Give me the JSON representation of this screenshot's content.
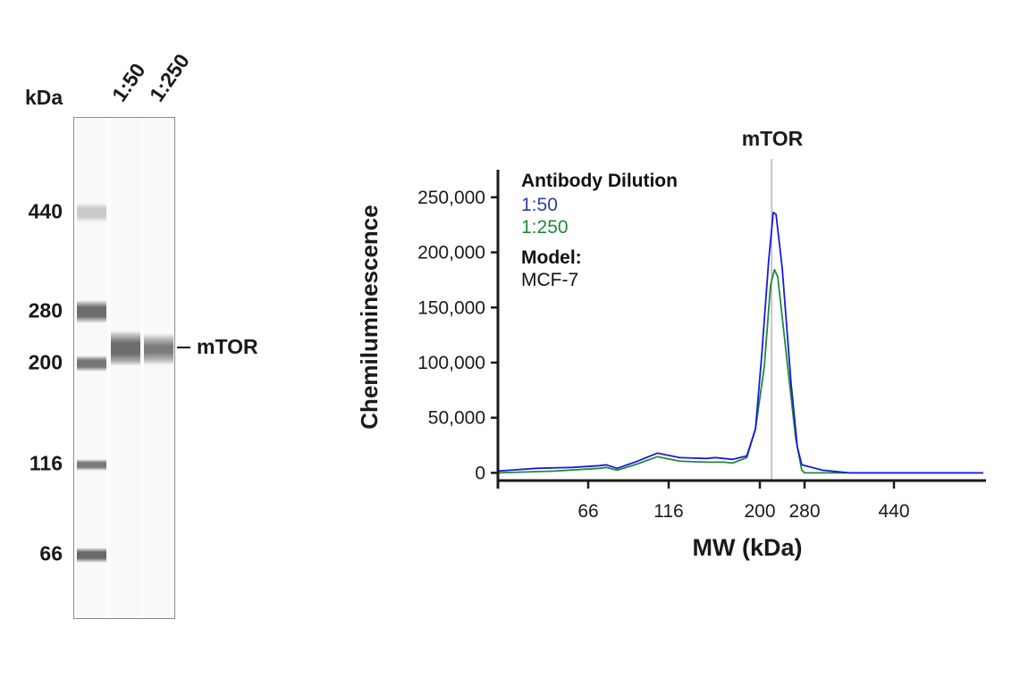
{
  "gel": {
    "unit_label": "kDa",
    "lane_labels": [
      "1:50",
      "1:250"
    ],
    "ladder_markers": [
      "440",
      "280",
      "200",
      "116",
      "66"
    ],
    "target_label": "mTOR"
  },
  "chart_data": {
    "type": "line",
    "title": "mTOR",
    "xlabel": "MW (kDa)",
    "ylabel": "Chemiluminescence",
    "xticks": [
      66,
      116,
      200,
      280,
      440
    ],
    "xtick_labels": [
      "66",
      "116",
      "200",
      "280",
      "440"
    ],
    "yticks": [
      0,
      50000,
      100000,
      150000,
      200000,
      250000
    ],
    "ytick_labels": [
      "0",
      "50,000",
      "100,000",
      "150,000",
      "200,000",
      "250,000"
    ],
    "xlim": [
      10,
      600
    ],
    "ylim": [
      -7000,
      275000
    ],
    "x_scale": "nonlinear (MW ladder calibrated)",
    "grid": false,
    "reference_line_x": 221,
    "legend": {
      "placement": "top-left",
      "title": "Antibody Dilution",
      "model_label": "Model:",
      "model_value": "MCF-7"
    },
    "series": [
      {
        "name": "1:50",
        "color": "#1a1adc",
        "x": [
          10,
          34,
          56,
          73,
          77,
          84,
          95,
          109,
          126,
          151,
          159,
          175,
          188,
          196,
          203,
          216,
          224,
          229,
          240,
          256,
          267,
          275,
          312,
          360,
          440,
          600
        ],
        "y": [
          1600,
          4100,
          4900,
          6500,
          7300,
          4100,
          9700,
          17900,
          13800,
          13000,
          13800,
          12200,
          15400,
          39800,
          104700,
          194000,
          236200,
          234600,
          185900,
          80400,
          23500,
          7300,
          2400,
          0,
          0,
          0
        ]
      },
      {
        "name": "1:250",
        "color": "#1f8a3a",
        "x": [
          10,
          45,
          73,
          77,
          84,
          95,
          109,
          126,
          151,
          167,
          175,
          188,
          196,
          208,
          219,
          226,
          232,
          248,
          264,
          275,
          280,
          360,
          600
        ],
        "y": [
          0,
          1600,
          4100,
          4900,
          2400,
          7300,
          14600,
          10600,
          9700,
          9700,
          8900,
          13800,
          39800,
          96600,
          169600,
          184300,
          177800,
          104700,
          31700,
          2400,
          0,
          0,
          0
        ]
      }
    ]
  }
}
